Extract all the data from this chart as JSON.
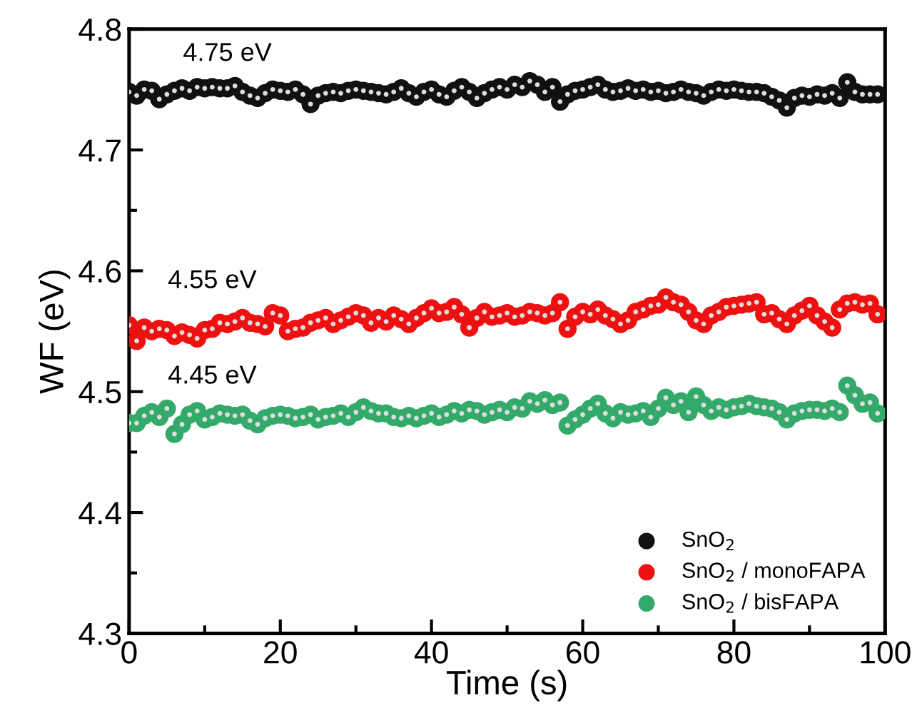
{
  "chart_data": {
    "type": "scatter",
    "xlabel": "Time (s)",
    "ylabel": "WF (eV)",
    "xlim": [
      0,
      100
    ],
    "ylim": [
      4.3,
      4.8
    ],
    "xticks": [
      0,
      20,
      40,
      60,
      80,
      100
    ],
    "yticks": [
      4.3,
      4.4,
      4.5,
      4.6,
      4.7,
      4.8
    ],
    "marker": "circle",
    "legend": "bottom right",
    "grid": false,
    "annotations": [
      "4.75 eV",
      "4.55 eV",
      "4.45 eV"
    ],
    "x": [
      0,
      1,
      2,
      3,
      4,
      5,
      6,
      7,
      8,
      9,
      10,
      11,
      12,
      13,
      14,
      15,
      16,
      17,
      18,
      19,
      20,
      21,
      22,
      23,
      24,
      25,
      26,
      27,
      28,
      29,
      30,
      31,
      32,
      33,
      34,
      35,
      36,
      37,
      38,
      39,
      40,
      41,
      42,
      43,
      44,
      45,
      46,
      47,
      48,
      49,
      50,
      51,
      52,
      53,
      54,
      55,
      56,
      57,
      58,
      59,
      60,
      61,
      62,
      63,
      64,
      65,
      66,
      67,
      68,
      69,
      70,
      71,
      72,
      73,
      74,
      75,
      76,
      77,
      78,
      79,
      80,
      81,
      82,
      83,
      84,
      85,
      86,
      87,
      88,
      89,
      90,
      91,
      92,
      93,
      94,
      95,
      96,
      97,
      98,
      99
    ],
    "series": [
      {
        "name": "SnO$_{2}$",
        "color": "#111111",
        "values": [
          4.748,
          4.745,
          4.75,
          4.749,
          4.742,
          4.746,
          4.749,
          4.751,
          4.749,
          4.752,
          4.751,
          4.752,
          4.751,
          4.751,
          4.753,
          4.748,
          4.745,
          4.743,
          4.747,
          4.75,
          4.749,
          4.748,
          4.75,
          4.746,
          4.738,
          4.745,
          4.747,
          4.748,
          4.747,
          4.749,
          4.75,
          4.749,
          4.748,
          4.747,
          4.746,
          4.748,
          4.751,
          4.747,
          4.744,
          4.748,
          4.75,
          4.746,
          4.744,
          4.749,
          4.752,
          4.748,
          4.743,
          4.747,
          4.75,
          4.752,
          4.75,
          4.754,
          4.752,
          4.757,
          4.754,
          4.748,
          4.752,
          4.74,
          4.746,
          4.749,
          4.75,
          4.752,
          4.754,
          4.75,
          4.748,
          4.749,
          4.751,
          4.749,
          4.75,
          4.748,
          4.749,
          4.747,
          4.748,
          4.75,
          4.748,
          4.747,
          4.745,
          4.748,
          4.75,
          4.749,
          4.75,
          4.749,
          4.748,
          4.748,
          4.747,
          4.744,
          4.741,
          4.735,
          4.743,
          4.745,
          4.744,
          4.746,
          4.745,
          4.747,
          4.743,
          4.756,
          4.748,
          4.746,
          4.746,
          4.746
        ]
      },
      {
        "name": "SnO$_{2}$ / monoFAPA",
        "color": "#ee1111",
        "values": [
          4.555,
          4.542,
          4.553,
          4.55,
          4.552,
          4.551,
          4.546,
          4.549,
          4.547,
          4.544,
          4.551,
          4.552,
          4.557,
          4.556,
          4.558,
          4.561,
          4.557,
          4.556,
          4.554,
          4.565,
          4.563,
          4.55,
          4.552,
          4.553,
          4.557,
          4.559,
          4.561,
          4.556,
          4.559,
          4.562,
          4.565,
          4.563,
          4.557,
          4.561,
          4.558,
          4.563,
          4.56,
          4.556,
          4.561,
          4.565,
          4.569,
          4.565,
          4.566,
          4.57,
          4.564,
          4.553,
          4.561,
          4.566,
          4.562,
          4.563,
          4.565,
          4.562,
          4.563,
          4.566,
          4.565,
          4.563,
          4.565,
          4.574,
          4.552,
          4.562,
          4.566,
          4.564,
          4.568,
          4.563,
          4.56,
          4.556,
          4.559,
          4.566,
          4.568,
          4.571,
          4.572,
          4.578,
          4.574,
          4.572,
          4.566,
          4.559,
          4.556,
          4.563,
          4.566,
          4.57,
          4.571,
          4.572,
          4.573,
          4.574,
          4.564,
          4.565,
          4.56,
          4.556,
          4.563,
          4.567,
          4.571,
          4.563,
          4.558,
          4.553,
          4.568,
          4.573,
          4.574,
          4.572,
          4.573,
          4.564
        ]
      },
      {
        "name": "SnO$_{2}$ / bisFAPA",
        "color": "#33aa6a",
        "values": [
          4.474,
          4.474,
          4.48,
          4.483,
          4.479,
          4.486,
          4.465,
          4.473,
          4.481,
          4.484,
          4.477,
          4.479,
          4.482,
          4.481,
          4.48,
          4.481,
          4.476,
          4.473,
          4.478,
          4.48,
          4.481,
          4.48,
          4.478,
          4.479,
          4.481,
          4.477,
          4.479,
          4.48,
          4.482,
          4.479,
          4.483,
          4.487,
          4.484,
          4.482,
          4.482,
          4.479,
          4.478,
          4.48,
          4.478,
          4.48,
          4.482,
          4.479,
          4.481,
          4.484,
          4.482,
          4.485,
          4.484,
          4.481,
          4.483,
          4.485,
          4.483,
          4.487,
          4.486,
          4.492,
          4.49,
          4.493,
          4.489,
          4.491,
          4.472,
          4.477,
          4.481,
          4.486,
          4.49,
          4.482,
          4.478,
          4.483,
          4.481,
          4.482,
          4.484,
          4.479,
          4.486,
          4.495,
          4.489,
          4.492,
          4.483,
          4.496,
          4.489,
          4.484,
          4.487,
          4.485,
          4.487,
          4.488,
          4.49,
          4.488,
          4.487,
          4.486,
          4.483,
          4.477,
          4.482,
          4.484,
          4.485,
          4.485,
          4.484,
          4.486,
          4.483,
          4.505,
          4.497,
          4.49,
          4.491,
          4.482
        ]
      }
    ]
  }
}
